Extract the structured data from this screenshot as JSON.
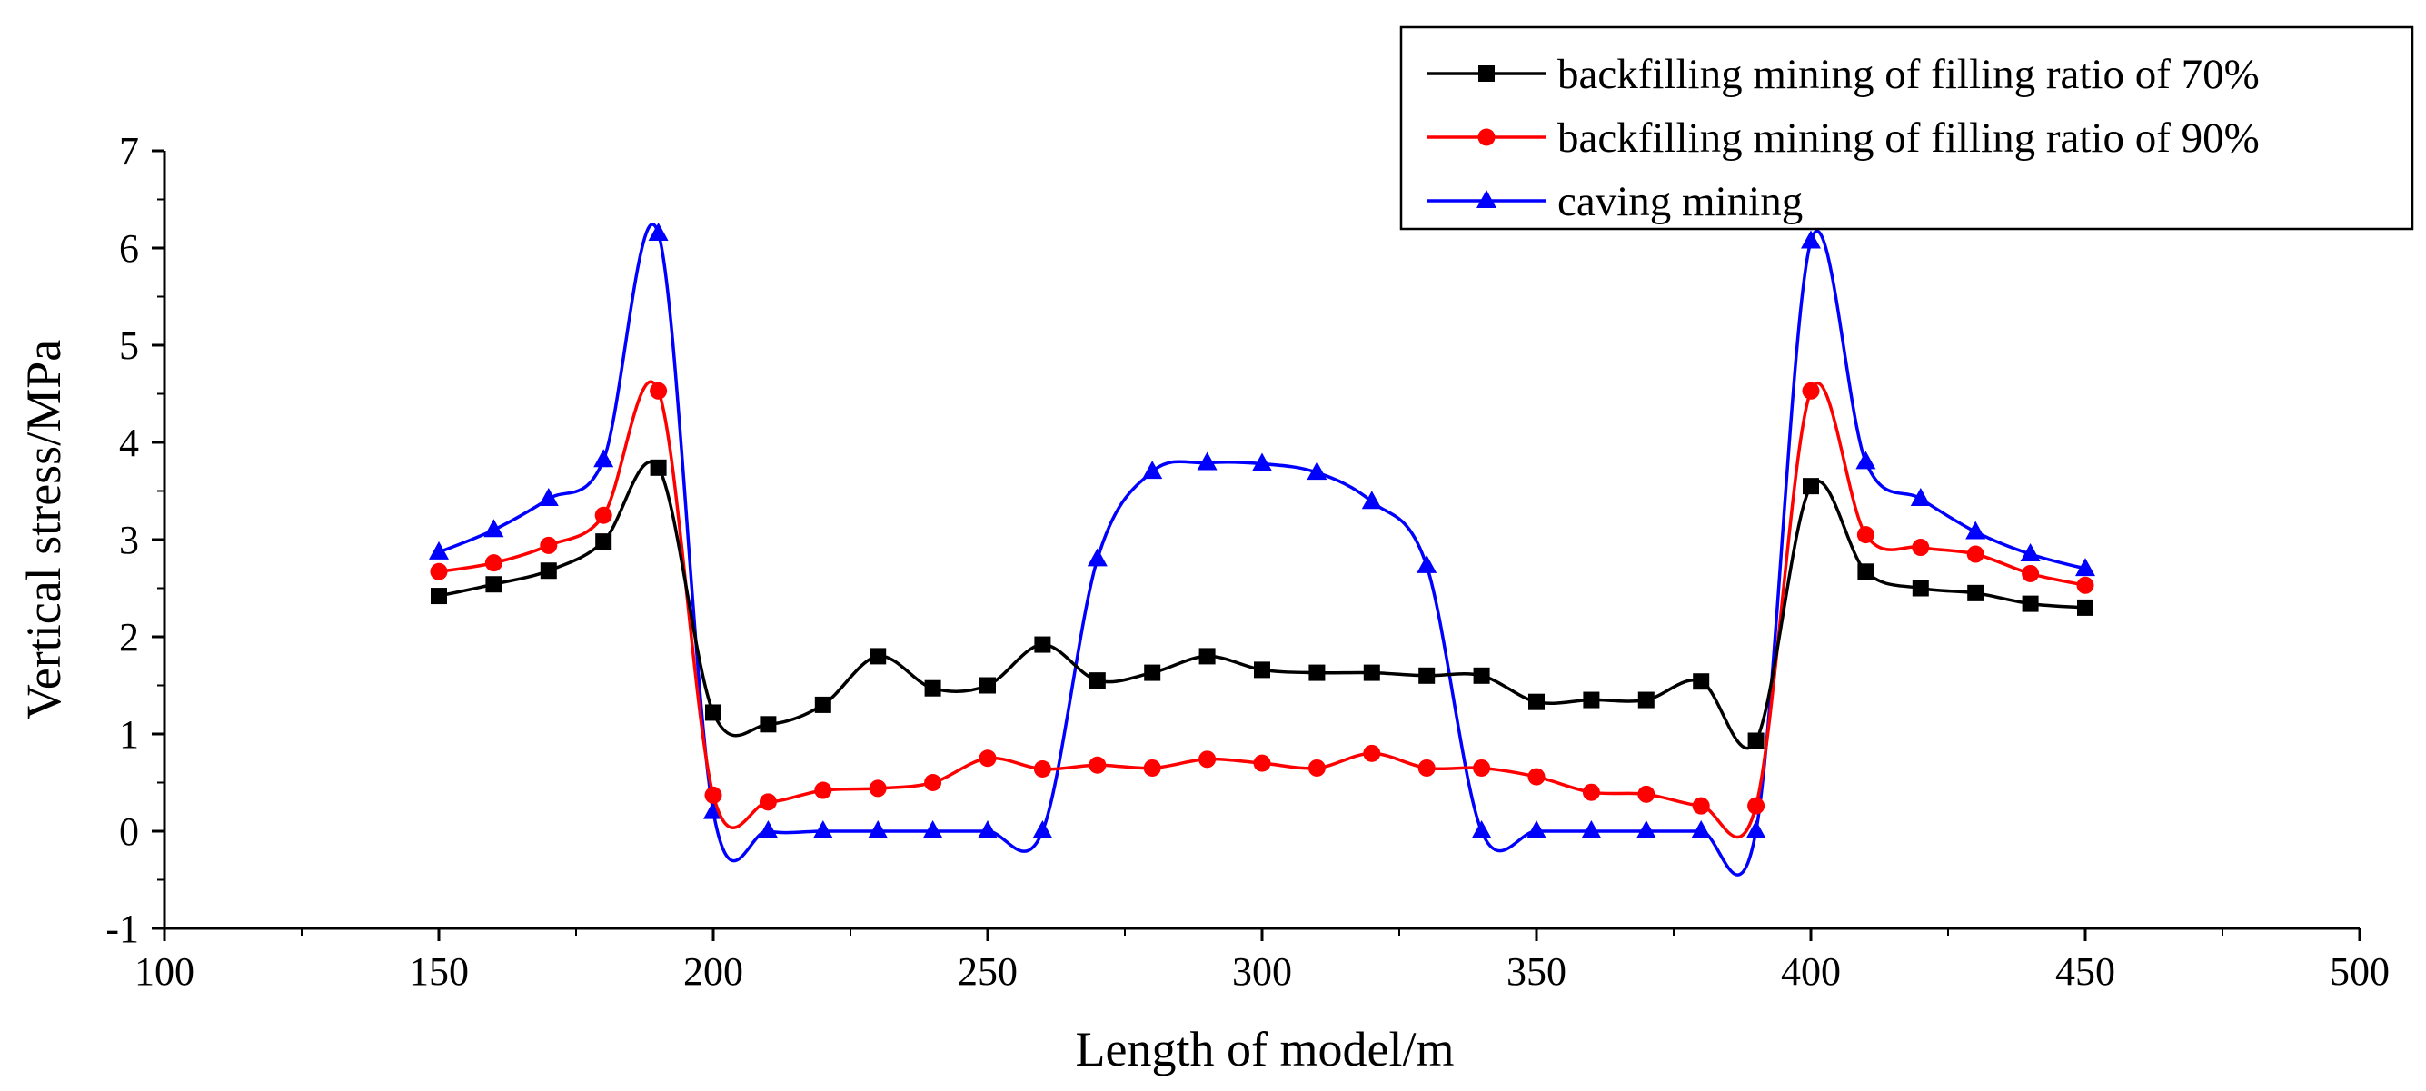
{
  "chart_data": {
    "type": "line",
    "title": "",
    "xlabel": "Length of model/m",
    "ylabel": "Vertical stress/MPa",
    "xlim": [
      100,
      500
    ],
    "ylim": [
      -1,
      7
    ],
    "xticks": [
      100,
      150,
      200,
      250,
      300,
      350,
      400,
      450,
      500
    ],
    "yticks": [
      -1,
      0,
      1,
      2,
      3,
      4,
      5,
      6,
      7
    ],
    "grid": false,
    "legend_position": "top-right",
    "x": [
      150,
      160,
      170,
      180,
      190,
      200,
      210,
      220,
      230,
      240,
      250,
      260,
      270,
      280,
      290,
      300,
      310,
      320,
      330,
      340,
      350,
      360,
      370,
      380,
      390,
      400,
      410,
      420,
      430,
      440,
      450
    ],
    "series": [
      {
        "name": "backfilling mining of filling ratio of 70%",
        "color": "#000000",
        "marker": "square",
        "values": [
          2.42,
          2.54,
          2.68,
          2.98,
          3.74,
          1.22,
          1.1,
          1.3,
          1.8,
          1.47,
          1.5,
          1.92,
          1.55,
          1.63,
          1.8,
          1.66,
          1.63,
          1.63,
          1.6,
          1.6,
          1.33,
          1.35,
          1.35,
          1.54,
          0.93,
          3.55,
          2.67,
          2.5,
          2.45,
          2.34,
          2.3
        ]
      },
      {
        "name": "backfilling mining of filling ratio of 90%",
        "color": "#ff0000",
        "marker": "circle",
        "values": [
          2.67,
          2.76,
          2.94,
          3.25,
          4.53,
          0.37,
          0.3,
          0.42,
          0.44,
          0.5,
          0.75,
          0.64,
          0.68,
          0.65,
          0.74,
          0.7,
          0.65,
          0.8,
          0.65,
          0.65,
          0.56,
          0.4,
          0.38,
          0.26,
          0.26,
          4.53,
          3.05,
          2.92,
          2.85,
          2.65,
          2.53
        ]
      },
      {
        "name": "caving mining",
        "color": "#0000ff",
        "marker": "triangle",
        "values": [
          2.87,
          3.1,
          3.42,
          3.82,
          6.15,
          0.2,
          0.0,
          0.0,
          0.0,
          0.0,
          0.0,
          0.0,
          2.8,
          3.7,
          3.79,
          3.78,
          3.69,
          3.39,
          2.73,
          0.0,
          0.0,
          0.0,
          0.0,
          0.0,
          0.0,
          6.07,
          3.8,
          3.42,
          3.08,
          2.85,
          2.7
        ]
      }
    ]
  }
}
